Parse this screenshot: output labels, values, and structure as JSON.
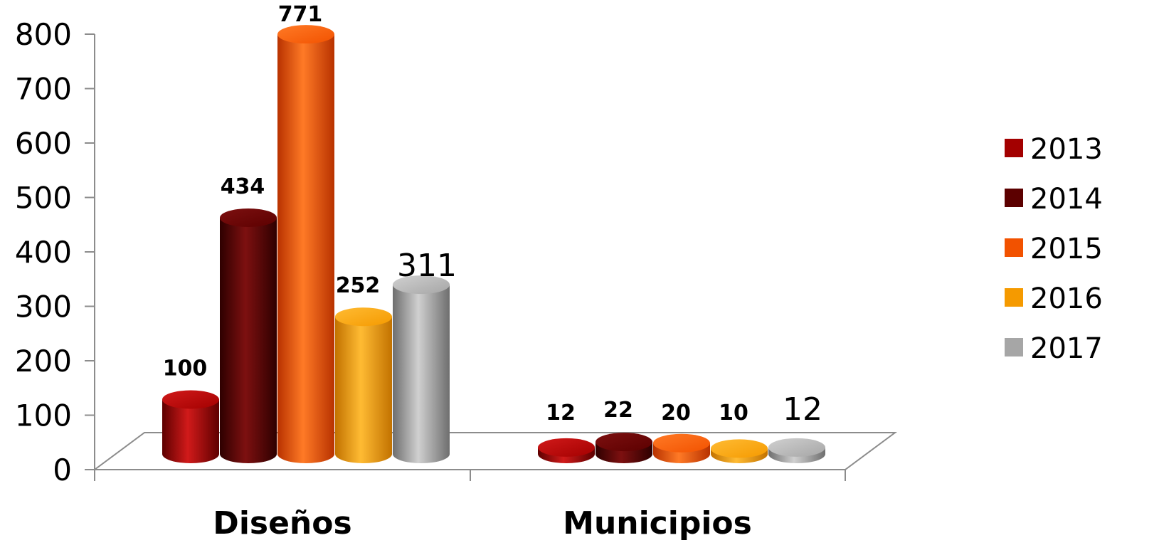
{
  "chart_data": {
    "type": "bar",
    "categories": [
      "Diseños",
      "Municipios"
    ],
    "series": [
      {
        "name": "2013",
        "values": [
          100,
          12
        ],
        "color": "#a30000",
        "dark": "#5e0000",
        "light": "#d11a1a"
      },
      {
        "name": "2014",
        "values": [
          434,
          22
        ],
        "color": "#5c0000",
        "dark": "#2e0000",
        "light": "#7d1010"
      },
      {
        "name": "2015",
        "values": [
          771,
          20
        ],
        "color": "#f25200",
        "dark": "#b83200",
        "light": "#ff7a26"
      },
      {
        "name": "2016",
        "values": [
          252,
          10
        ],
        "color": "#f59a00",
        "dark": "#c27200",
        "light": "#ffbb33"
      },
      {
        "name": "2017",
        "values": [
          311,
          12
        ],
        "color": "#a6a6a6",
        "dark": "#6e6e6e",
        "light": "#d0d0d0"
      }
    ],
    "ylim": [
      0,
      800
    ],
    "yticks": [
      "0",
      "100",
      "200",
      "300",
      "400",
      "500",
      "600",
      "700",
      "800"
    ],
    "data_labels": [
      [
        "100",
        "12"
      ],
      [
        "434",
        "22"
      ],
      [
        "771",
        "20"
      ],
      [
        "252",
        "10"
      ],
      [
        "311",
        "12"
      ]
    ],
    "legend_position": "right",
    "grid": false,
    "style": "3d-cylinder"
  }
}
